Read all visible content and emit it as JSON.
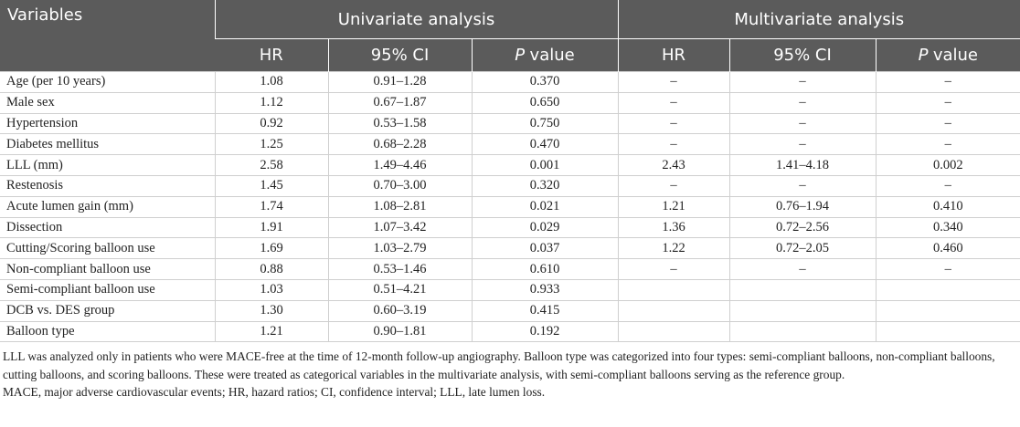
{
  "table": {
    "header_groups": [
      "Variables",
      "Univariate analysis",
      "Multivariate analysis"
    ],
    "columns": [
      "HR",
      "95% CI",
      {
        "italic": "P",
        "text": "value"
      },
      "HR",
      "95% CI",
      {
        "italic": "P",
        "text": "value"
      }
    ],
    "rows": [
      [
        "Age (per 10 years)",
        "1.08",
        "0.91–1.28",
        "0.370",
        "–",
        "–",
        "–"
      ],
      [
        "Male sex",
        "1.12",
        "0.67–1.87",
        "0.650",
        "–",
        "–",
        "–"
      ],
      [
        "Hypertension",
        "0.92",
        "0.53–1.58",
        "0.750",
        "–",
        "–",
        "–"
      ],
      [
        "Diabetes mellitus",
        "1.25",
        "0.68–2.28",
        "0.470",
        "–",
        "–",
        "–"
      ],
      [
        "LLL (mm)",
        "2.58",
        "1.49–4.46",
        "0.001",
        "2.43",
        "1.41–4.18",
        "0.002"
      ],
      [
        "Restenosis",
        "1.45",
        "0.70–3.00",
        "0.320",
        "–",
        "–",
        "–"
      ],
      [
        "Acute lumen gain (mm)",
        "1.74",
        "1.08–2.81",
        "0.021",
        "1.21",
        "0.76–1.94",
        "0.410"
      ],
      [
        "Dissection",
        "1.91",
        "1.07–3.42",
        "0.029",
        "1.36",
        "0.72–2.56",
        "0.340"
      ],
      [
        "Cutting/Scoring balloon use",
        "1.69",
        "1.03–2.79",
        "0.037",
        "1.22",
        "0.72–2.05",
        "0.460"
      ],
      [
        "Non-compliant balloon use",
        "0.88",
        "0.53–1.46",
        "0.610",
        "–",
        "–",
        "–"
      ],
      [
        "Semi-compliant balloon use",
        "1.03",
        "0.51–4.21",
        "0.933"
      ],
      [
        "DCB vs. DES group",
        "1.30",
        "0.60–3.19",
        "0.415"
      ],
      [
        "Balloon type",
        "1.21",
        "0.90–1.81",
        "0.192"
      ]
    ]
  },
  "footnotes": [
    "LLL was analyzed only in patients who were MACE-free at the time of 12-month follow-up angiography. Balloon type was categorized into four types: semi-compliant balloons, non-compliant balloons, cutting balloons, and scoring balloons. These were treated as categorical variables in the multivariate analysis, with semi-compliant balloons serving as the reference group.",
    "MACE, major adverse cardiovascular events; HR, hazard ratios; CI, confidence interval; LLL, late lumen loss."
  ]
}
